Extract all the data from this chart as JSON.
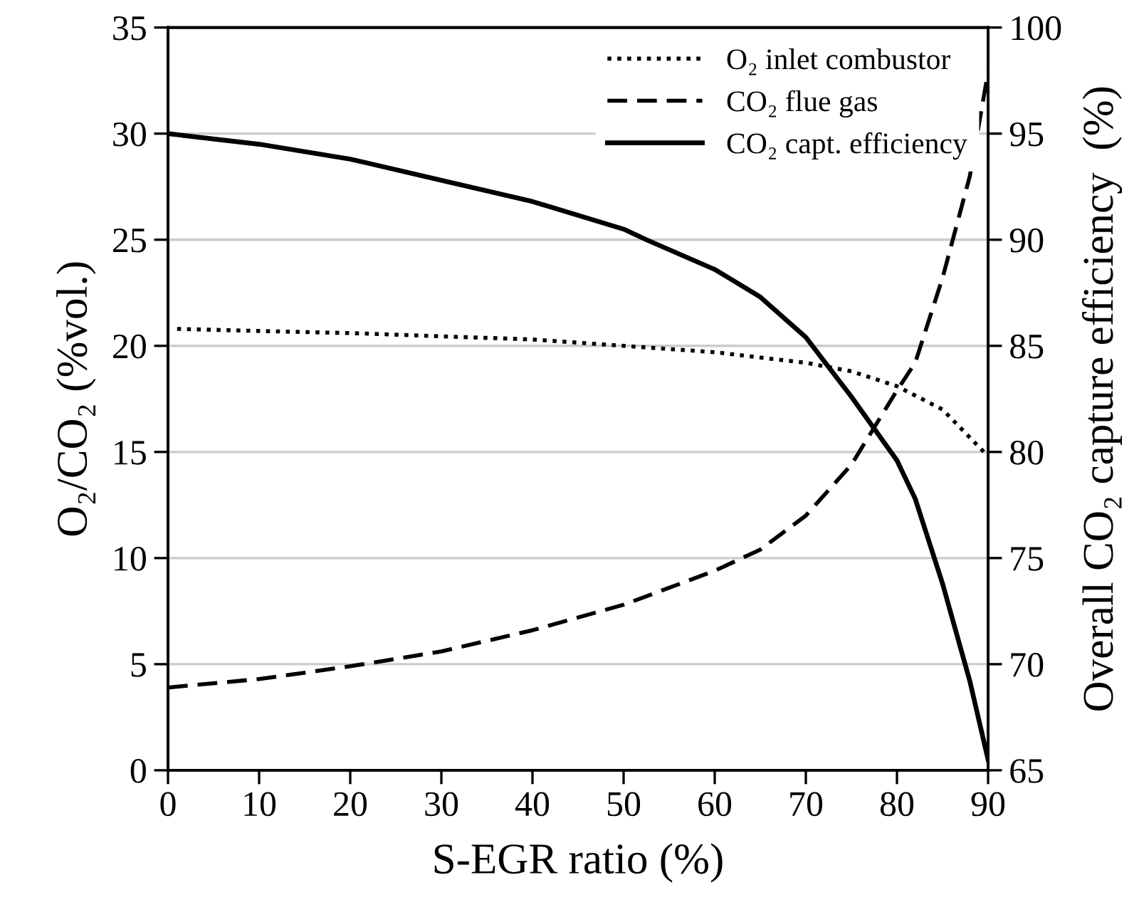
{
  "chart_data": {
    "type": "line",
    "xlabel": "S-EGR ratio (%)",
    "ylabel": "O₂/CO₂ (%vol.)",
    "y2label": "Overall CO₂ capture efficiency  (%)",
    "xlim": [
      0,
      90
    ],
    "xticks": [
      0,
      10,
      20,
      30,
      40,
      50,
      60,
      70,
      80,
      90
    ],
    "ylim": [
      0,
      35
    ],
    "yticks": [
      0,
      5,
      10,
      15,
      20,
      25,
      30,
      35
    ],
    "y2lim": [
      65,
      100
    ],
    "y2ticks": [
      65,
      70,
      75,
      80,
      85,
      90,
      95,
      100
    ],
    "grid": "y",
    "legend": "top right",
    "series": [
      {
        "name": "O₂ inlet combustor",
        "color": "#000000",
        "line_style": "dotted",
        "x": [
          1,
          10,
          20,
          30,
          40,
          50,
          60,
          70,
          75,
          80,
          85,
          90
        ],
        "values": [
          20.8,
          20.7,
          20.6,
          20.45,
          20.3,
          20.0,
          19.7,
          19.2,
          18.8,
          18.1,
          17.0,
          14.8
        ]
      },
      {
        "name": "CO₂ flue gas",
        "color": "#000000",
        "line_style": "dashed",
        "x": [
          0,
          10,
          20,
          30,
          40,
          50,
          60,
          65,
          70,
          75,
          80,
          82,
          85,
          88,
          90
        ],
        "values": [
          3.9,
          4.3,
          4.9,
          5.6,
          6.6,
          7.8,
          9.4,
          10.4,
          12.0,
          14.4,
          17.9,
          19.2,
          23.2,
          28.0,
          32.9
        ]
      },
      {
        "name": "CO₂ capt. efficiency",
        "color": "#000000",
        "line_style": "solid",
        "axis": "y2",
        "x": [
          0,
          10,
          20,
          30,
          40,
          50,
          52.5,
          60,
          65,
          70,
          75,
          80,
          82,
          85,
          88,
          90
        ],
        "values": [
          95.0,
          94.5,
          93.8,
          92.8,
          91.8,
          90.5,
          90.0,
          88.6,
          87.3,
          85.4,
          82.6,
          79.6,
          77.8,
          73.8,
          69.2,
          65.5
        ]
      }
    ]
  }
}
